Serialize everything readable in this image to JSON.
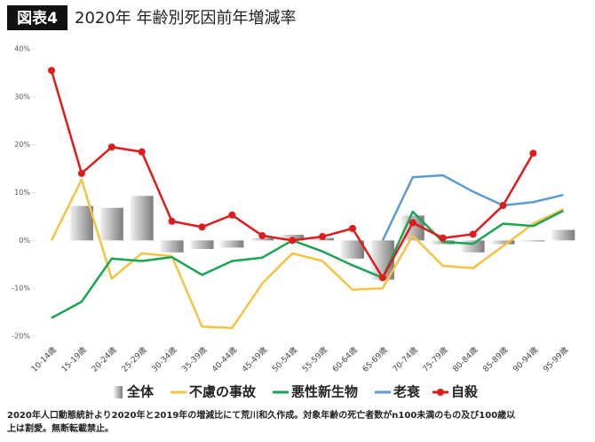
{
  "chart_data": {
    "type": "combo",
    "badge": "図表4",
    "title": "2020年 年齢別死因前年増減率",
    "categories": [
      "10-14歳",
      "15-19歳",
      "20-24歳",
      "25-29歳",
      "30-34歳",
      "35-39歳",
      "40-44歳",
      "45-49歳",
      "50-54歳",
      "55-59歳",
      "60-64歳",
      "65-69歳",
      "70-74歳",
      "75-79歳",
      "80-84歳",
      "85-89歳",
      "90-94歳",
      "95-99歳"
    ],
    "series": [
      {
        "name": "全体",
        "kind": "bar",
        "color": "#9a9a9a",
        "values": [
          0,
          7.2,
          6.8,
          9.3,
          -2.5,
          -1.8,
          -1.5,
          0.5,
          1.2,
          0.5,
          -3.8,
          -8.2,
          5.2,
          -0.8,
          -2.5,
          -0.8,
          -0.2,
          2.2
        ]
      },
      {
        "name": "不慮の事故",
        "kind": "line",
        "color": "#f5c242",
        "values": [
          0,
          12.7,
          -8,
          -2.7,
          -3.3,
          -18,
          -18.3,
          -9,
          -2.7,
          -4.3,
          -10.3,
          -10,
          1,
          -5.3,
          -5.8,
          -1.2,
          3.5,
          6.5
        ]
      },
      {
        "name": "悪性新生物",
        "kind": "line",
        "color": "#1aa552",
        "values": [
          -16.2,
          -12.8,
          -3.8,
          -4.3,
          -3.5,
          -7.2,
          -4.3,
          -3.6,
          0,
          -2.3,
          -5.2,
          -7.8,
          6,
          -0.3,
          -0.7,
          3.5,
          3,
          6.2
        ]
      },
      {
        "name": "老衰",
        "kind": "line",
        "color": "#5b9bd5",
        "values": [
          null,
          null,
          null,
          null,
          null,
          null,
          null,
          null,
          null,
          null,
          null,
          0,
          13.2,
          13.6,
          10.2,
          7.3,
          8,
          9.5
        ]
      },
      {
        "name": "自殺",
        "kind": "line",
        "markers": true,
        "color": "#e01b1b",
        "values": [
          35.5,
          14,
          19.5,
          18.5,
          4,
          2.8,
          5.3,
          1,
          0,
          0.8,
          2.5,
          -7.8,
          3.7,
          0.5,
          1.3,
          7.3,
          18.2,
          null
        ]
      }
    ],
    "ylim": [
      -20,
      40
    ],
    "yticks": [
      {
        "value": -20,
        "label": "-20%"
      },
      {
        "value": -10,
        "label": "-10%"
      },
      {
        "value": 0,
        "label": "0%"
      },
      {
        "value": 10,
        "label": "10%"
      },
      {
        "value": 20,
        "label": "20%"
      },
      {
        "value": 30,
        "label": "30%"
      },
      {
        "value": 40,
        "label": "40%"
      }
    ],
    "grid": false,
    "legend": "bottom",
    "notes": [
      "2020年人口動態統計より2020年と2019年の増減比にて荒川和久作成。対象年齢の死亡者数がn100未満のもの及び100歳以",
      "上は割愛。無断転載禁止。"
    ]
  }
}
